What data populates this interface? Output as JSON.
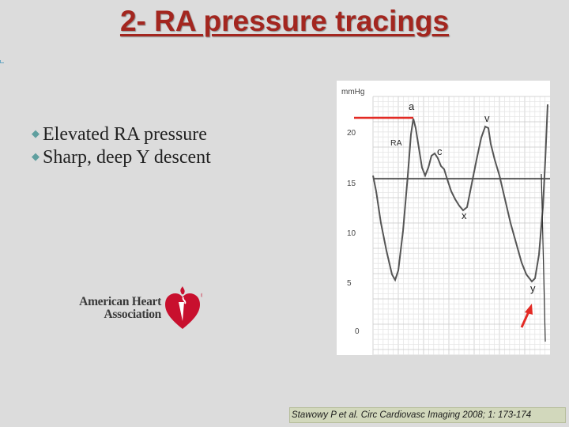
{
  "slide": {
    "title": "2- RA pressure tracings",
    "bullets": [
      "Elevated RA pressure",
      "Sharp, deep Y descent"
    ],
    "bullet_icon": "diamond-bullet-icon",
    "title_color": "#a3261f"
  },
  "logo": {
    "line1": "American Heart",
    "line2": "Association",
    "registered": "®",
    "icon": "heart-torch-icon",
    "color": "#c8102e"
  },
  "tracing": {
    "unit_label": "mmHg",
    "y_ticks": [
      "20",
      "15",
      "10",
      "5",
      "0"
    ],
    "chamber_label": "RA",
    "wave_labels": {
      "a": "a",
      "c": "c",
      "v": "v",
      "x": "x",
      "y": "y"
    },
    "marker_color": "#e32a24",
    "reference_level": 15
  },
  "citation": {
    "text": "Stawowy P et al. Circ Cardiovasc Imaging 2008; 1: 173-174"
  }
}
